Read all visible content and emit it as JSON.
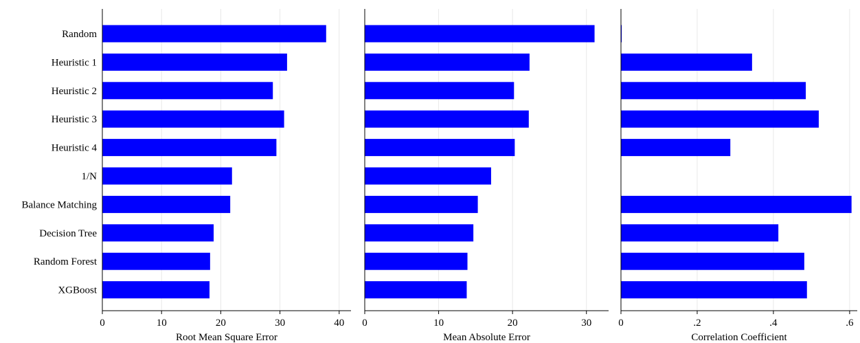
{
  "chart_data": [
    {
      "type": "bar",
      "orientation": "horizontal",
      "categories": [
        "Random",
        "Heuristic 1",
        "Heuristic 2",
        "Heuristic 3",
        "Heuristic 4",
        "1/N",
        "Balance Matching",
        "Decision Tree",
        "Random Forest",
        "XGBoost"
      ],
      "values": [
        37.8,
        31.2,
        28.8,
        30.7,
        29.4,
        21.9,
        21.6,
        18.8,
        18.2,
        18.1
      ],
      "xlabel": "Root Mean Square Error",
      "xlim": [
        0,
        42
      ],
      "xticks": [
        0,
        10,
        20,
        30,
        40
      ],
      "xtick_labels": [
        "0",
        "10",
        "20",
        "30",
        "40"
      ],
      "color": "#0000ff",
      "grid": "vertical"
    },
    {
      "type": "bar",
      "orientation": "horizontal",
      "categories": [
        "Random",
        "Heuristic 1",
        "Heuristic 2",
        "Heuristic 3",
        "Heuristic 4",
        "1/N",
        "Balance Matching",
        "Decision Tree",
        "Random Forest",
        "XGBoost"
      ],
      "values": [
        31.1,
        22.3,
        20.2,
        22.2,
        20.3,
        17.1,
        15.3,
        14.7,
        13.9,
        13.8
      ],
      "xlabel": "Mean Absolute Error",
      "xlim": [
        0,
        33
      ],
      "xticks": [
        0,
        10,
        20,
        30
      ],
      "xtick_labels": [
        "0",
        "10",
        "20",
        "30"
      ],
      "color": "#0000ff",
      "grid": "vertical"
    },
    {
      "type": "bar",
      "orientation": "horizontal",
      "categories": [
        "Random",
        "Heuristic 1",
        "Heuristic 2",
        "Heuristic 3",
        "Heuristic 4",
        "1/N",
        "Balance Matching",
        "Decision Tree",
        "Random Forest",
        "XGBoost"
      ],
      "values": [
        0.002,
        0.344,
        0.485,
        0.519,
        0.287,
        0,
        0.605,
        0.413,
        0.481,
        0.488
      ],
      "xlabel": "Correlation Coefficient",
      "xlim": [
        0,
        0.62
      ],
      "xticks": [
        0,
        0.2,
        0.4,
        0.6
      ],
      "xtick_labels": [
        "0",
        ".2",
        ".4",
        ".6"
      ],
      "color": "#0000ff",
      "grid": "vertical"
    }
  ]
}
